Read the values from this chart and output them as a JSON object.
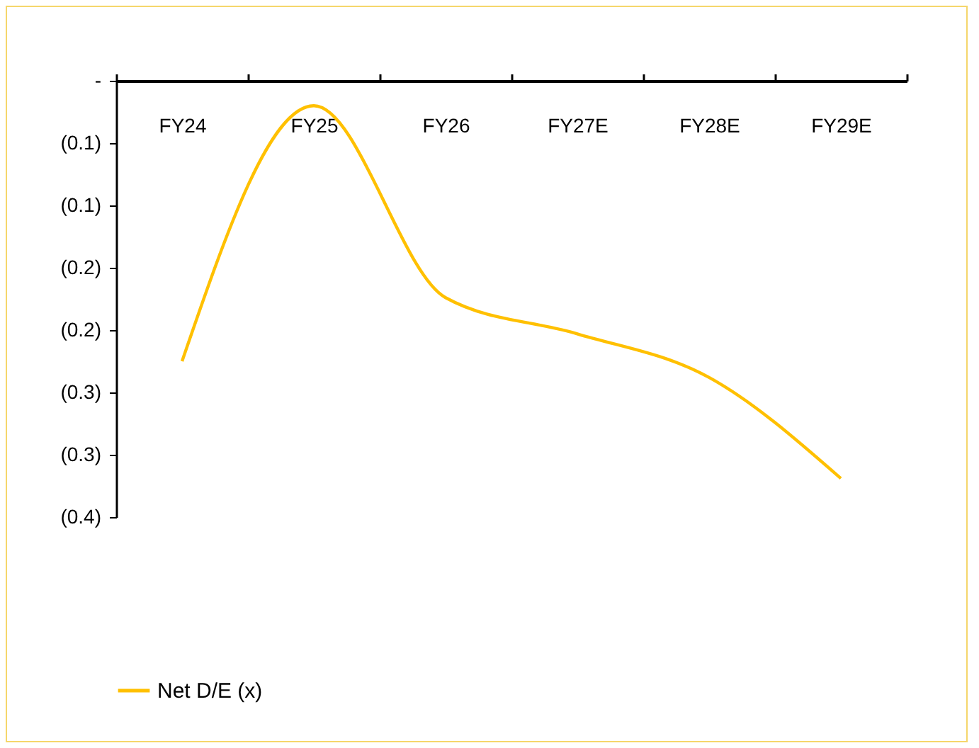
{
  "chart_data": {
    "type": "line",
    "categories": [
      "FY24",
      "FY25",
      "FY26",
      "FY27E",
      "FY28E",
      "FY29E"
    ],
    "series": [
      {
        "name": "Net D/E (x)",
        "color": "#ffc000",
        "values": [
          -0.225,
          -0.02,
          -0.174,
          -0.203,
          -0.238,
          -0.319
        ]
      }
    ],
    "ylim": [
      -0.35,
      0
    ],
    "yticks": [
      {
        "value": 0,
        "label": "-"
      },
      {
        "value": -0.05,
        "label": "(0.1)"
      },
      {
        "value": -0.1,
        "label": "(0.1)"
      },
      {
        "value": -0.15,
        "label": "(0.2)"
      },
      {
        "value": -0.2,
        "label": "(0.2)"
      },
      {
        "value": -0.25,
        "label": "(0.3)"
      },
      {
        "value": -0.3,
        "label": "(0.3)"
      },
      {
        "value": -0.35,
        "label": "(0.4)"
      }
    ],
    "grid": false,
    "legend": "bottom",
    "marker": "none",
    "line_style": "solid"
  }
}
